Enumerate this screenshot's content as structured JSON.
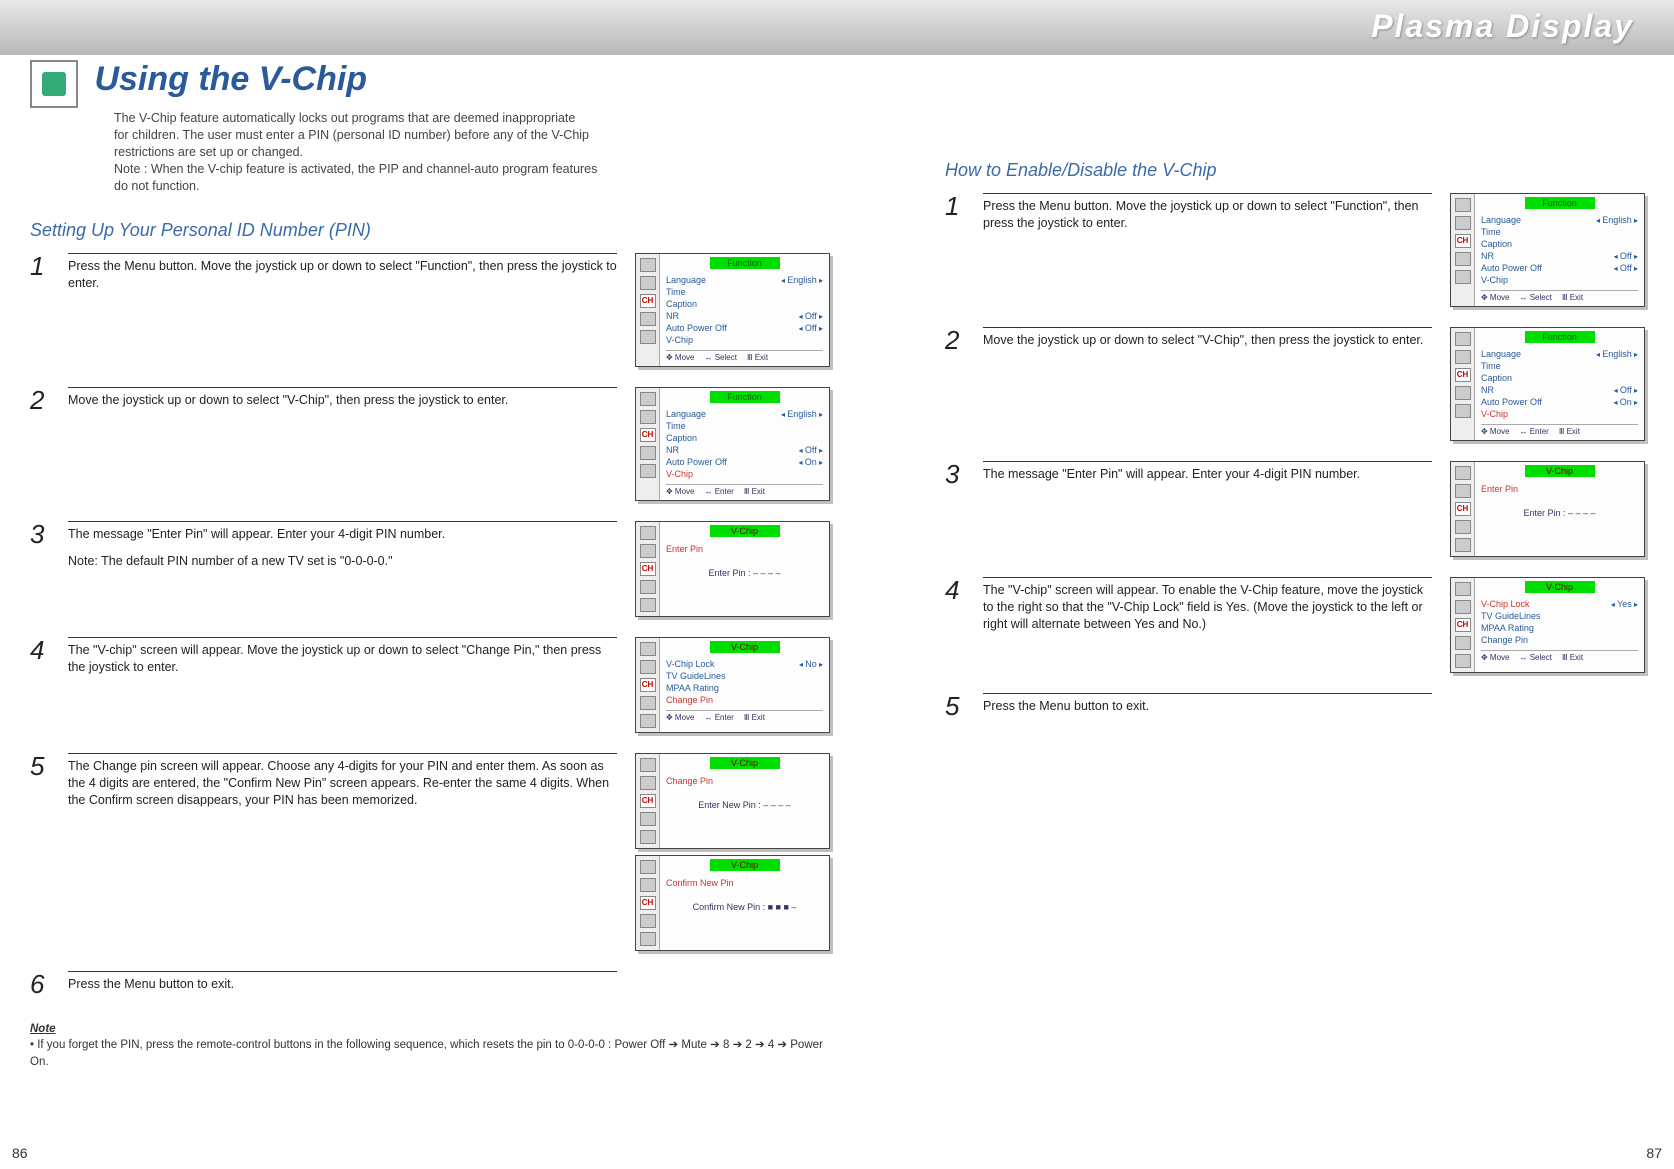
{
  "header_brand": "Plasma Display",
  "main_title": "Using the V-Chip",
  "intro_lines": [
    "The V-Chip feature automatically locks out programs that are deemed inappropriate",
    "for children. The user must enter a PIN (personal ID number) before any of the V-Chip",
    "restrictions are set up or changed.",
    "Note : When the V-chip feature is activated, the PIP and channel-auto program features",
    "do not function."
  ],
  "left_section_title": "Setting Up Your Personal ID Number (PIN)",
  "right_section_title": "How to Enable/Disable the V-Chip",
  "left_steps": [
    {
      "n": "1",
      "text": "Press the Menu button. Move the joystick up or down to select \"Function\", then press the joystick to enter."
    },
    {
      "n": "2",
      "text": "Move the joystick up or down to select \"V-Chip\", then press the joystick to enter."
    },
    {
      "n": "3",
      "text": "The message \"Enter Pin\" will appear. Enter your 4-digit PIN number.",
      "sub": "Note: The default PIN number of a new TV set is \"0-0-0-0.\""
    },
    {
      "n": "4",
      "text": "The \"V-chip\" screen will appear. Move the joystick up or down to select \"Change Pin,\" then press the joystick to enter."
    },
    {
      "n": "5",
      "text": "The Change pin screen will appear. Choose any 4-digits for your PIN and enter them. As soon as the 4 digits are entered, the \"Confirm New Pin\" screen appears. Re-enter the same 4 digits. When the Confirm screen disappears, your PIN has been memorized."
    },
    {
      "n": "6",
      "text": "Press the Menu button to exit."
    }
  ],
  "right_steps": [
    {
      "n": "1",
      "text": "Press the Menu button. Move the joystick up or down to select \"Function\", then press the joystick to enter."
    },
    {
      "n": "2",
      "text": "Move the joystick up or down to select \"V-Chip\", then press the joystick to enter."
    },
    {
      "n": "3",
      "text": "The message \"Enter Pin\" will appear. Enter your 4-digit PIN number."
    },
    {
      "n": "4",
      "text": "The \"V-chip\" screen will appear. To enable the V-Chip feature, move the joystick to the right so that the \"V-Chip Lock\" field is Yes. (Move the joystick to the left or right will alternate between Yes and No.)"
    },
    {
      "n": "5",
      "text": "Press the Menu button to exit."
    }
  ],
  "note": {
    "hdr": "Note",
    "text": "•  If you forget the PIN, press the remote-control buttons in the following sequence, which resets the pin to 0-0-0-0 : Power Off ➔ Mute ➔ 8 ➔ 2 ➔ 4 ➔ Power On."
  },
  "page_left": "86",
  "page_right": "87",
  "osd": {
    "fn_title": "Function",
    "vc_title": "V-Chip",
    "items_fn": [
      {
        "lbl": "Language",
        "val": "English"
      },
      {
        "lbl": "Time",
        "val": ""
      },
      {
        "lbl": "Caption",
        "val": ""
      },
      {
        "lbl": "NR",
        "val": "Off"
      },
      {
        "lbl": "Auto Power Off",
        "val": "Off"
      },
      {
        "lbl": "V-Chip",
        "val": ""
      }
    ],
    "items_fn2": [
      {
        "lbl": "Language",
        "val": "English"
      },
      {
        "lbl": "Time",
        "val": ""
      },
      {
        "lbl": "Caption",
        "val": ""
      },
      {
        "lbl": "NR",
        "val": "Off"
      },
      {
        "lbl": "Auto Power Off",
        "val": "On"
      },
      {
        "lbl": "V-Chip",
        "val": "",
        "hl": true
      }
    ],
    "items_vc": [
      {
        "lbl": "V-Chip Lock",
        "val": "No"
      },
      {
        "lbl": "TV GuideLines",
        "val": ""
      },
      {
        "lbl": "MPAA Rating",
        "val": ""
      },
      {
        "lbl": "Change Pin",
        "val": "",
        "hl": true
      }
    ],
    "items_vc_yes": [
      {
        "lbl": "V-Chip Lock",
        "val": "Yes",
        "hl": true
      },
      {
        "lbl": "TV GuideLines",
        "val": ""
      },
      {
        "lbl": "MPAA Rating",
        "val": ""
      },
      {
        "lbl": "Change Pin",
        "val": ""
      }
    ],
    "foot_move": "Move",
    "foot_select": "Select",
    "foot_enter": "Enter",
    "foot_exit": "Exit",
    "enter_pin_hdr": "Enter Pin",
    "enter_pin": "Enter Pin   :   – – – –",
    "change_pin_hdr": "Change Pin",
    "change_pin": "Enter New Pin  :   – – – –",
    "confirm_pin_hdr": "Confirm New Pin",
    "confirm_pin": "Confirm New Pin  :   ■ ■ ■ –"
  }
}
